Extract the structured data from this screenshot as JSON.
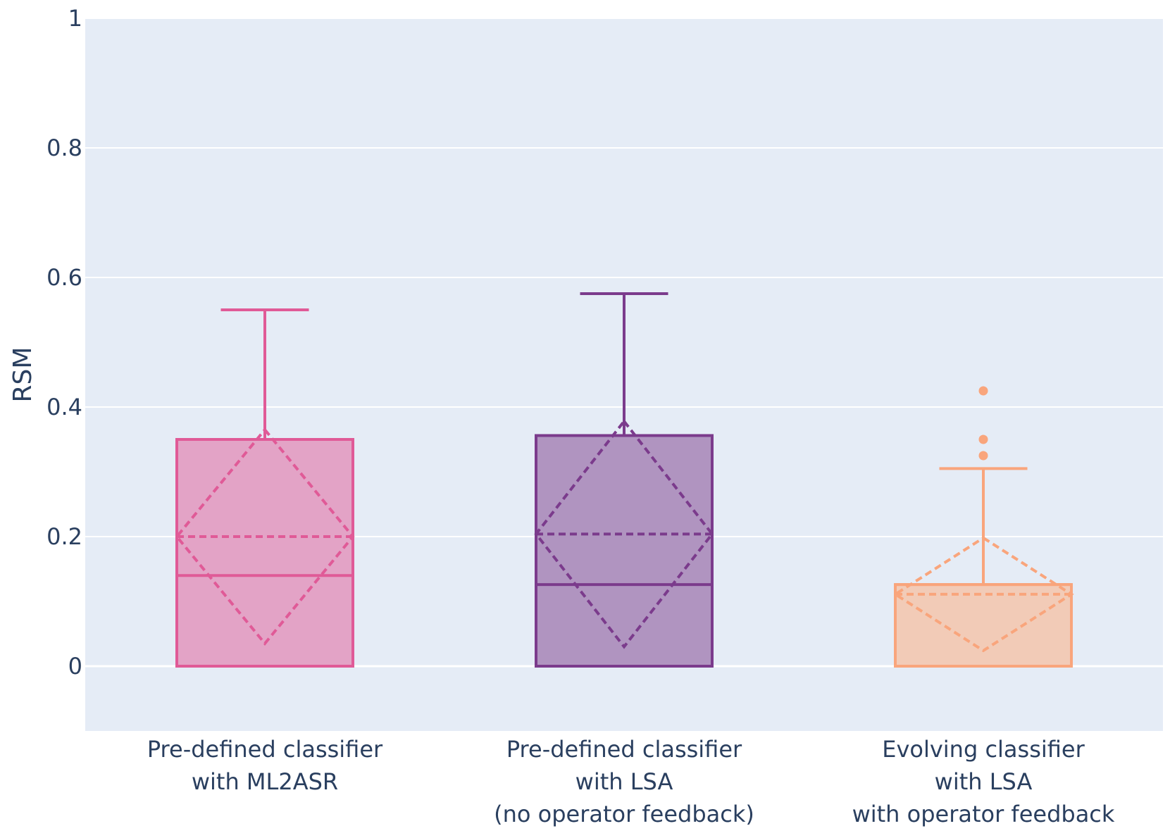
{
  "chart_data": {
    "type": "box",
    "ylabel": "RSM",
    "xlabel": "",
    "ylim": [
      -0.1,
      1.0
    ],
    "yticks": [
      0,
      0.2,
      0.4,
      0.6,
      0.8,
      1
    ],
    "ytick_labels": [
      "0",
      "0.2",
      "0.4",
      "0.6",
      "0.8",
      "1"
    ],
    "grid": true,
    "plot_background": "#e5ecf6",
    "grid_color": "#ffffff",
    "series": [
      {
        "name": "Pre-defined classifier with ML2ASR",
        "label_lines": [
          "Pre-defined classifier",
          "with ML2ASR"
        ],
        "color": "#e05a97",
        "fill": "#e3a3c6",
        "q1": 0.0,
        "median": 0.14,
        "q3": 0.35,
        "whisker_low": 0.0,
        "whisker_high": 0.55,
        "mean": 0.2,
        "sd": 0.165,
        "outliers": []
      },
      {
        "name": "Pre-defined classifier with LSA (no operator feedback)",
        "label_lines": [
          "Pre-defined classifier",
          "with LSA",
          "(no operator feedback)"
        ],
        "color": "#7b3b8c",
        "fill": "#b094c0",
        "q1": 0.0,
        "median": 0.126,
        "q3": 0.356,
        "whisker_low": 0.0,
        "whisker_high": 0.575,
        "mean": 0.204,
        "sd": 0.174,
        "outliers": []
      },
      {
        "name": "Evolving classifier with LSA with operator feedback",
        "label_lines": [
          "Evolving classifier",
          "with LSA",
          "with operator feedback"
        ],
        "color": "#f9a57c",
        "fill": "#f2cbb7",
        "q1": 0.0,
        "median": 0.126,
        "q3": 0.126,
        "whisker_low": 0.0,
        "whisker_high": 0.305,
        "mean": 0.111,
        "sd": 0.087,
        "outliers": [
          0.425,
          0.35,
          0.325
        ]
      }
    ]
  }
}
